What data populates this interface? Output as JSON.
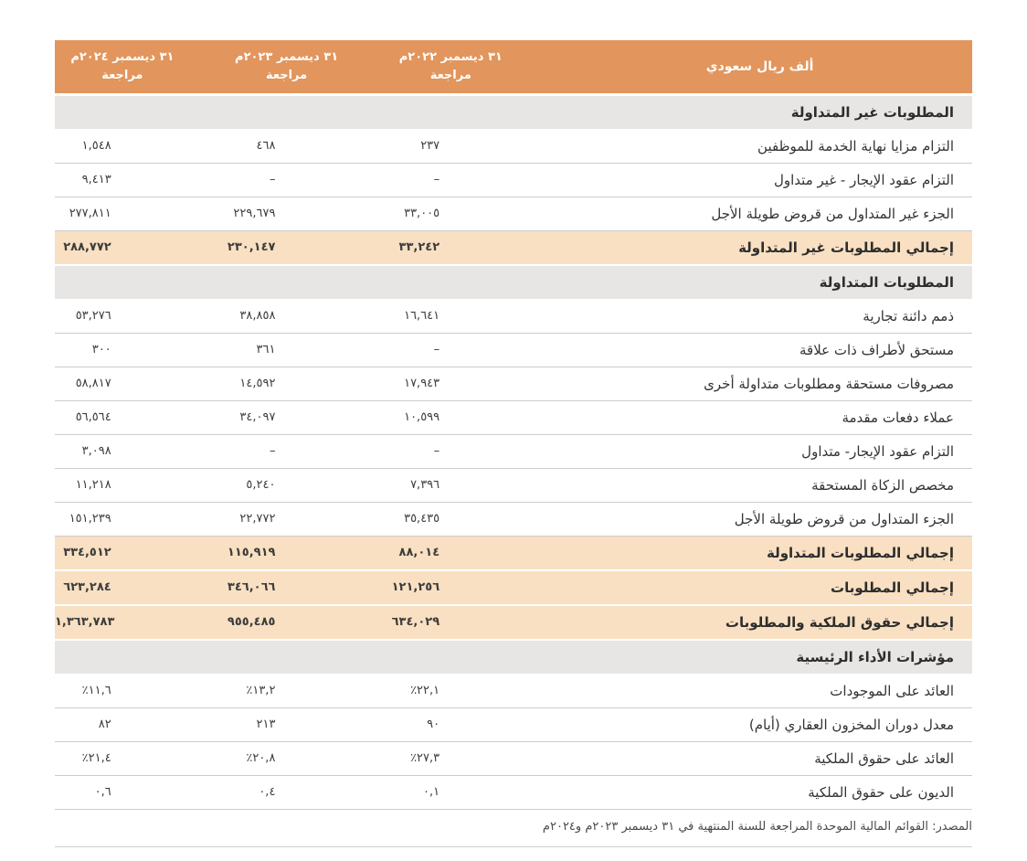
{
  "colors": {
    "header_bg": "#E2955C",
    "header_text": "#FFFFFF",
    "section_bg": "#E7E6E4",
    "total_bg": "#F9E0C2",
    "row_border": "#CCCCCC"
  },
  "table": {
    "unit_header": "ألف ريال سعودي",
    "columns": [
      {
        "id": "2022",
        "title": "٣١ ديسمبر ٢٠٢٢م",
        "subtitle": "مراجعة"
      },
      {
        "id": "2023",
        "title": "٣١ ديسمبر ٢٠٢٣م",
        "subtitle": "مراجعة"
      },
      {
        "id": "2024",
        "title": "٣١ ديسمبر ٢٠٢٤م",
        "subtitle": "مراجعة"
      }
    ],
    "rows": [
      {
        "type": "section",
        "label": "المطلوبات غير المتداولة"
      },
      {
        "type": "data",
        "label": "التزام مزايا نهاية الخدمة للموظفين",
        "v2022": "٢٣٧",
        "v2023": "٤٦٨",
        "v2024": "١,٥٤٨"
      },
      {
        "type": "data",
        "label": "التزام عقود الإيجار - غير متداول",
        "v2022": "–",
        "v2023": "–",
        "v2024": "٩,٤١٣"
      },
      {
        "type": "data",
        "label": "الجزء غير المتداول من قروض طويلة الأجل",
        "v2022": "٣٣,٠٠٥",
        "v2023": "٢٢٩,٦٧٩",
        "v2024": "٢٧٧,٨١١"
      },
      {
        "type": "total",
        "label": "إجمالي المطلوبات غير المتداولة",
        "v2022": "٣٣,٢٤٢",
        "v2023": "٢٣٠,١٤٧",
        "v2024": "٢٨٨,٧٧٢"
      },
      {
        "type": "section",
        "label": "المطلوبات المتداولة"
      },
      {
        "type": "data",
        "label": "ذمم دائنة تجارية",
        "v2022": "١٦,٦٤١",
        "v2023": "٣٨,٨٥٨",
        "v2024": "٥٣,٢٧٦"
      },
      {
        "type": "data",
        "label": "مستحق لأطراف ذات علاقة",
        "v2022": "–",
        "v2023": "٣٦١",
        "v2024": "٣٠٠"
      },
      {
        "type": "data",
        "label": "مصروفات مستحقة ومطلوبات متداولة أخرى",
        "v2022": "١٧,٩٤٣",
        "v2023": "١٤,٥٩٢",
        "v2024": "٥٨,٨١٧"
      },
      {
        "type": "data",
        "label": "عملاء دفعات مقدمة",
        "v2022": "١٠,٥٩٩",
        "v2023": "٣٤,٠٩٧",
        "v2024": "٥٦,٥٦٤"
      },
      {
        "type": "data",
        "label": "التزام عقود الإيجار- متداول",
        "v2022": "–",
        "v2023": "–",
        "v2024": "٣,٠٩٨"
      },
      {
        "type": "data",
        "label": "مخصص الزكاة المستحقة",
        "v2022": "٧,٣٩٦",
        "v2023": "٥,٢٤٠",
        "v2024": "١١,٢١٨"
      },
      {
        "type": "data",
        "label": "الجزء المتداول من قروض طويلة الأجل",
        "v2022": "٣٥,٤٣٥",
        "v2023": "٢٢,٧٧٢",
        "v2024": "١٥١,٢٣٩"
      },
      {
        "type": "total",
        "label": "إجمالي المطلوبات المتداولة",
        "v2022": "٨٨,٠١٤",
        "v2023": "١١٥,٩١٩",
        "v2024": "٣٣٤,٥١٢"
      },
      {
        "type": "total",
        "label": "إجمالي المطلوبات",
        "v2022": "١٢١,٢٥٦",
        "v2023": "٣٤٦,٠٦٦",
        "v2024": "٦٢٣,٢٨٤"
      },
      {
        "type": "total",
        "label": "إجمالي حقوق الملكية والمطلوبات",
        "v2022": "٦٣٤,٠٢٩",
        "v2023": "٩٥٥,٤٨٥",
        "v2024": "١,٣٦٣,٧٨٣"
      },
      {
        "type": "section",
        "label": "مؤشرات الأداء الرئيسية"
      },
      {
        "type": "data",
        "label": "العائد على الموجودات",
        "v2022": "٪٢٢,١",
        "v2023": "٪١٣,٢",
        "v2024": "٪١١,٦"
      },
      {
        "type": "data",
        "label": "معدل دوران المخزون العقاري (أيام)",
        "v2022": "٩٠",
        "v2023": "٢١٣",
        "v2024": "٨٢"
      },
      {
        "type": "data",
        "label": "العائد على حقوق الملكية",
        "v2022": "٪٢٧,٣",
        "v2023": "٪٢٠,٨",
        "v2024": "٪٢١,٤"
      },
      {
        "type": "data",
        "label": "الديون على حقوق الملكية",
        "v2022": "٠,١",
        "v2023": "٠,٤",
        "v2024": "٠,٦"
      }
    ]
  },
  "footer": {
    "source": "المصدر: القوائم المالية الموحدة المراجعة للسنة المنتهية في ٣١ ديسمبر ٢٠٢٣م و٢٠٢٤م"
  }
}
